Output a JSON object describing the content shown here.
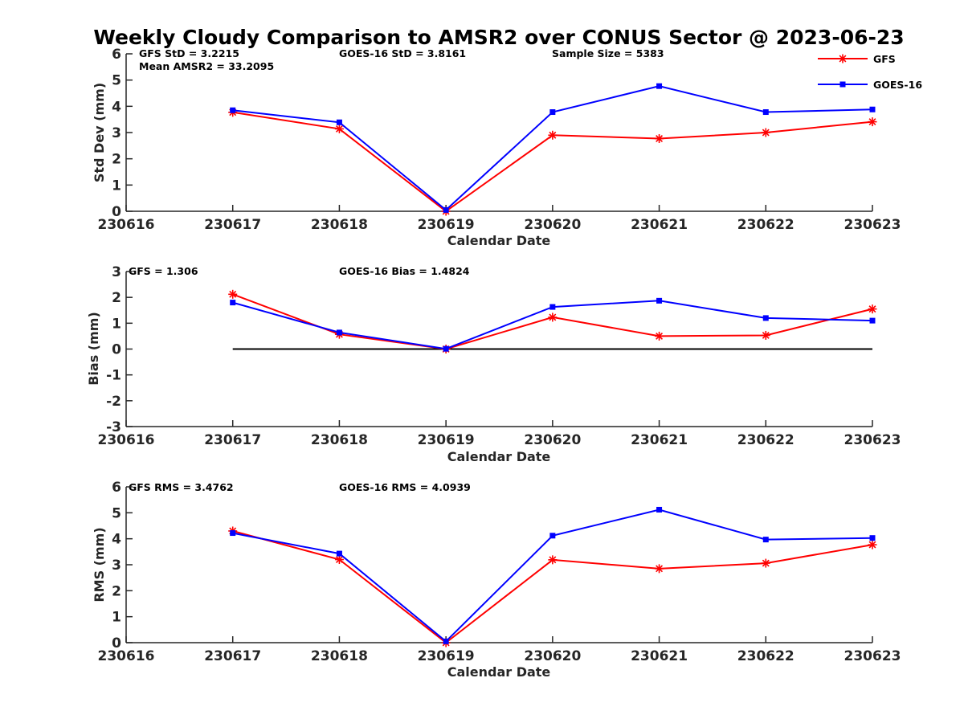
{
  "colors": {
    "GFS": "#ff0000",
    "GOES-16": "#0000ff",
    "zero_line": "#000000"
  },
  "legend": {
    "placement": "top-right",
    "entries": [
      {
        "name": "GFS",
        "color": "#ff0000",
        "marker": "asterisk"
      },
      {
        "name": "GOES-16",
        "color": "#0000ff",
        "marker": "square"
      }
    ]
  },
  "chart_data": [
    {
      "type": "line",
      "title": "Weekly Cloudy Comparison to AMSR2 over CONUS Sector @ 2023-06-23",
      "xlabel": "Calendar Date",
      "ylabel": "Std Dev (mm)",
      "x": [
        "230616",
        "230617",
        "230618",
        "230619",
        "230620",
        "230621",
        "230622",
        "230623"
      ],
      "ylim": [
        0,
        6
      ],
      "yticks": [
        "0",
        "1",
        "2",
        "3",
        "4",
        "5",
        "6"
      ],
      "zero_line": false,
      "annotations": [
        "GFS StD = 3.2215",
        "Mean AMSR2 = 33.2095",
        "GOES-16 StD = 3.8161",
        "Sample Size = 5383"
      ],
      "series": [
        {
          "name": "GFS",
          "color": "#ff0000",
          "marker": "asterisk",
          "x": [
            "230617",
            "230618",
            "230619",
            "230620",
            "230621",
            "230622",
            "230623"
          ],
          "values": [
            3.77,
            3.14,
            0.0,
            2.9,
            2.77,
            3.0,
            3.41
          ]
        },
        {
          "name": "GOES-16",
          "color": "#0000ff",
          "marker": "square",
          "x": [
            "230617",
            "230618",
            "230619",
            "230620",
            "230621",
            "230622",
            "230623"
          ],
          "values": [
            3.85,
            3.39,
            0.05,
            3.78,
            4.77,
            3.78,
            3.88
          ]
        }
      ]
    },
    {
      "type": "line",
      "title": "",
      "xlabel": "Calendar Date",
      "ylabel": "Bias (mm)",
      "x": [
        "230616",
        "230617",
        "230618",
        "230619",
        "230620",
        "230621",
        "230622",
        "230623"
      ],
      "ylim": [
        -3,
        3
      ],
      "yticks": [
        "-3",
        "-2",
        "-1",
        "0",
        "1",
        "2",
        "3"
      ],
      "zero_line": true,
      "annotations": [
        "GFS = 1.306",
        "GOES-16 Bias  = 1.4824"
      ],
      "series": [
        {
          "name": "GFS",
          "color": "#ff0000",
          "marker": "asterisk",
          "x": [
            "230617",
            "230618",
            "230619",
            "230620",
            "230621",
            "230622",
            "230623"
          ],
          "values": [
            2.12,
            0.57,
            0.0,
            1.23,
            0.5,
            0.53,
            1.55
          ]
        },
        {
          "name": "GOES-16",
          "color": "#0000ff",
          "marker": "square",
          "x": [
            "230617",
            "230618",
            "230619",
            "230620",
            "230621",
            "230622",
            "230623"
          ],
          "values": [
            1.8,
            0.64,
            0.01,
            1.63,
            1.87,
            1.2,
            1.1
          ]
        }
      ]
    },
    {
      "type": "line",
      "title": "",
      "xlabel": "Calendar Date",
      "ylabel": "RMS (mm)",
      "x": [
        "230616",
        "230617",
        "230618",
        "230619",
        "230620",
        "230621",
        "230622",
        "230623"
      ],
      "ylim": [
        0,
        6
      ],
      "yticks": [
        "0",
        "1",
        "2",
        "3",
        "4",
        "5",
        "6"
      ],
      "zero_line": false,
      "annotations": [
        "GFS RMS = 3.4762",
        "GOES-16 RMS = 4.0939"
      ],
      "series": [
        {
          "name": "GFS",
          "color": "#ff0000",
          "marker": "asterisk",
          "x": [
            "230617",
            "230618",
            "230619",
            "230620",
            "230621",
            "230622",
            "230623"
          ],
          "values": [
            4.3,
            3.2,
            0.0,
            3.19,
            2.85,
            3.06,
            3.77
          ]
        },
        {
          "name": "GOES-16",
          "color": "#0000ff",
          "marker": "square",
          "x": [
            "230617",
            "230618",
            "230619",
            "230620",
            "230621",
            "230622",
            "230623"
          ],
          "values": [
            4.22,
            3.43,
            0.05,
            4.12,
            5.12,
            3.97,
            4.03
          ]
        }
      ]
    }
  ]
}
